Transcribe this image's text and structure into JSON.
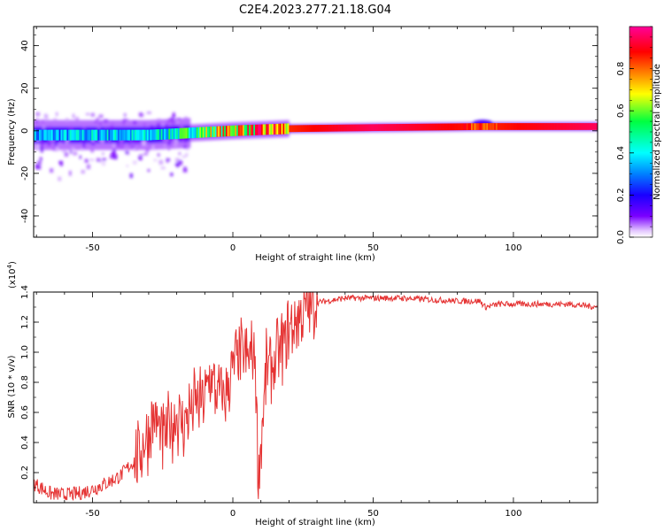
{
  "title": "C2E4.2023.277.21.18.G04",
  "colors": {
    "snr_line": "#e53333",
    "axis": "#000000"
  },
  "chart_data": [
    {
      "type": "heatmap",
      "title": "C2E4.2023.277.21.18.G04",
      "xlabel": "Height of straight line (km)",
      "ylabel": "Frequency (Hz)",
      "xlim": [
        -71,
        130
      ],
      "ylim": [
        -50,
        49
      ],
      "xticks": [
        "-50",
        "0",
        "50",
        "100"
      ],
      "yticks": [
        "-40",
        "-20",
        "0",
        "20",
        "40"
      ],
      "colorbar": {
        "label": "Normalized spectral amplitude",
        "range": [
          0.0,
          1.0
        ],
        "ticks": [
          "0.0",
          "0.2",
          "0.4",
          "0.6",
          "0.8"
        ],
        "colormap": "rainbow (white-purple-blue-cyan-green-yellow-red-magenta)"
      },
      "ridge": {
        "description": "spectral energy concentrated near 0–2 Hz; noisy scatter below ~ -15 km, steady strong line above ~20 km",
        "points": [
          {
            "x": -70,
            "y": -2,
            "amp": 0.35
          },
          {
            "x": -50,
            "y": -2,
            "amp": 0.4
          },
          {
            "x": -30,
            "y": -2,
            "amp": 0.4
          },
          {
            "x": -15,
            "y": -1,
            "amp": 0.55
          },
          {
            "x": 0,
            "y": 0,
            "amp": 0.8
          },
          {
            "x": 20,
            "y": 1,
            "amp": 0.85
          },
          {
            "x": 50,
            "y": 1.5,
            "amp": 0.95
          },
          {
            "x": 90,
            "y": 2,
            "amp": 0.85
          },
          {
            "x": 130,
            "y": 2,
            "amp": 0.95
          }
        ]
      }
    },
    {
      "type": "line",
      "xlabel": "Height of straight line (km)",
      "ylabel": "SNR (10 * v/v)",
      "y_multiplier": "(x10",
      "y_multiplier_exp": "4",
      "y_multiplier_close": ")",
      "xlim": [
        -71,
        130
      ],
      "ylim": [
        0.0,
        1.4
      ],
      "xticks": [
        "-50",
        "0",
        "50",
        "100"
      ],
      "yticks": [
        "0.2",
        "0.4",
        "0.6",
        "0.8",
        "1.0",
        "1.2",
        "1.4"
      ],
      "series": [
        {
          "x": [
            -71,
            -65,
            -60,
            -55,
            -50,
            -45,
            -40,
            -35,
            -30,
            -28,
            -25,
            -20,
            -18,
            -15,
            -10,
            -8,
            -6,
            -3,
            0,
            3,
            5,
            8,
            9,
            12,
            15,
            20,
            25,
            30,
            40,
            50,
            60,
            70,
            80,
            88,
            90,
            95,
            100,
            110,
            120,
            130
          ],
          "values": [
            0.13,
            0.06,
            0.05,
            0.06,
            0.09,
            0.13,
            0.18,
            0.28,
            0.45,
            0.58,
            0.4,
            0.58,
            0.52,
            0.62,
            0.7,
            0.85,
            0.72,
            0.7,
            0.9,
            0.98,
            0.95,
            1.0,
            0.15,
            0.9,
            0.92,
            1.15,
            1.28,
            1.33,
            1.36,
            1.36,
            1.36,
            1.35,
            1.34,
            1.34,
            1.3,
            1.32,
            1.32,
            1.32,
            1.32,
            1.3
          ]
        }
      ]
    }
  ]
}
